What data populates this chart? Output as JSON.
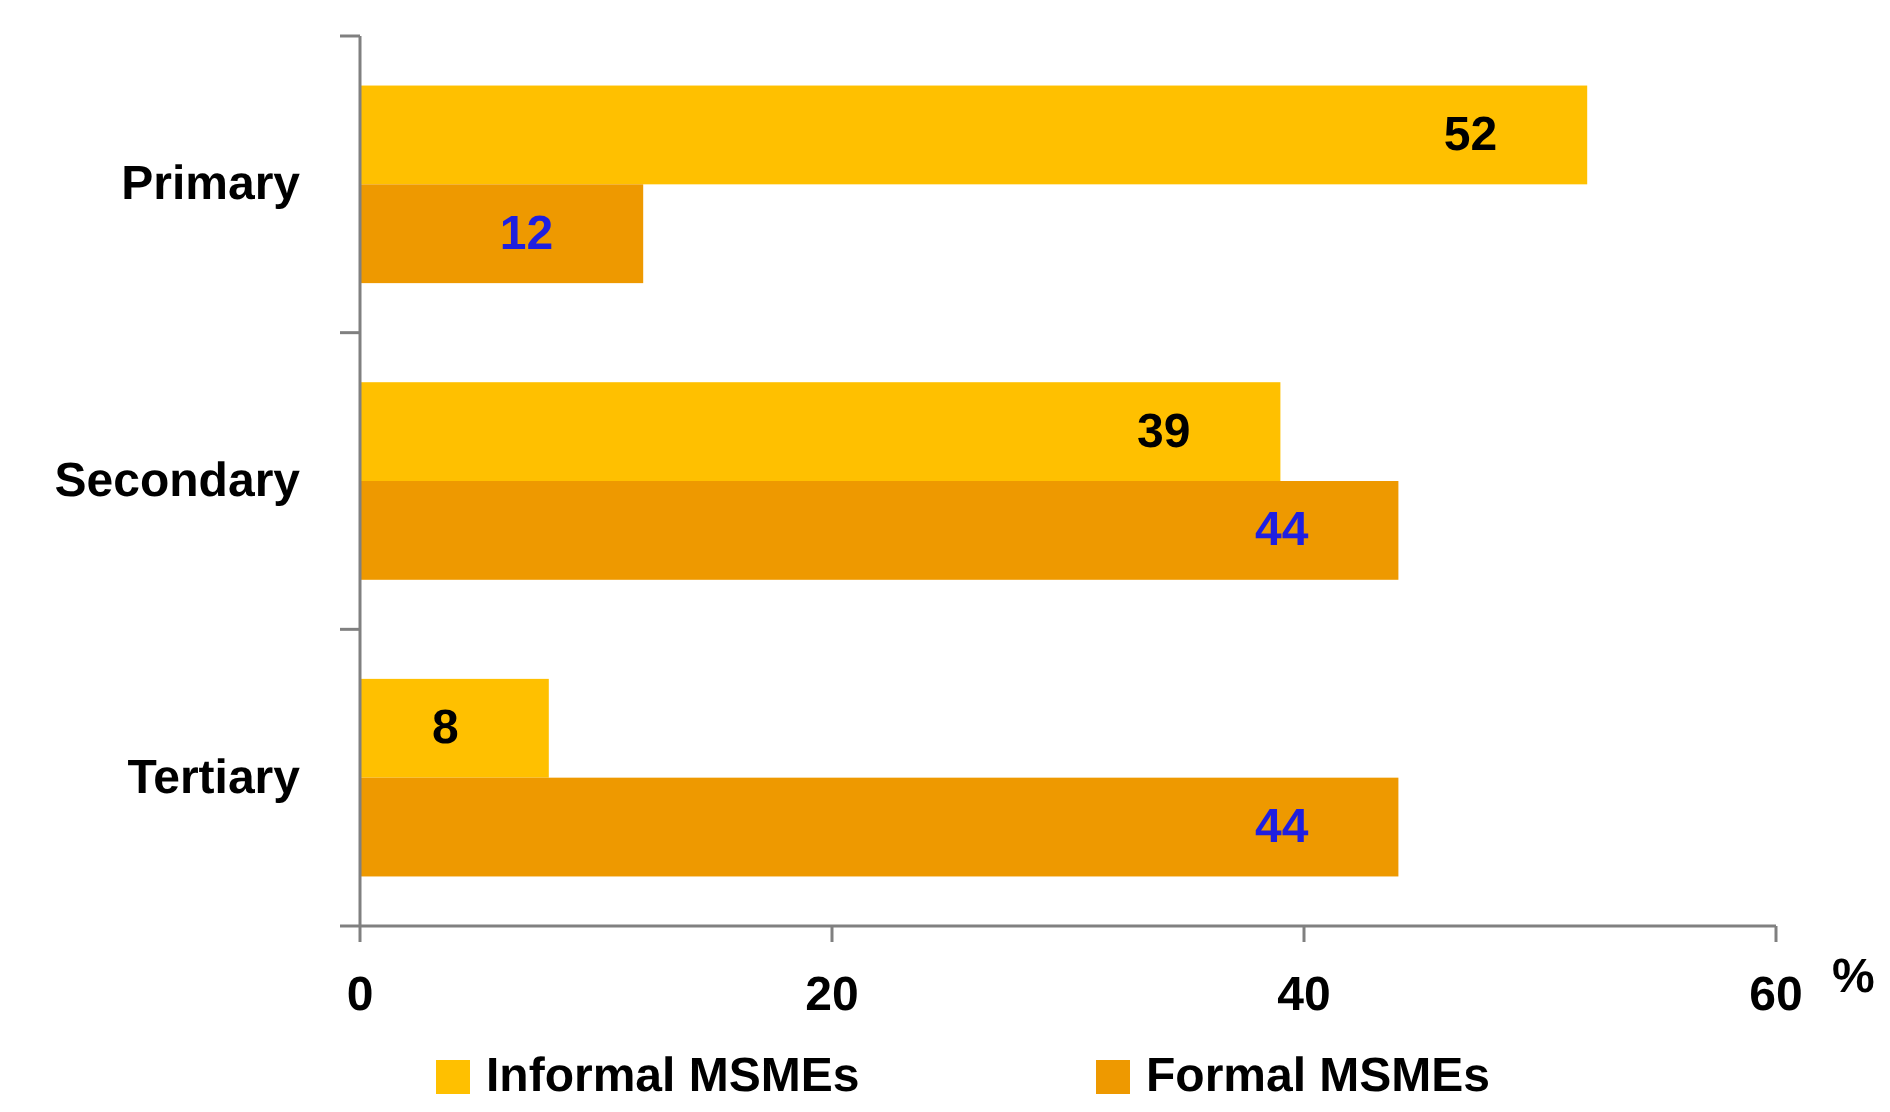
{
  "chart_data": {
    "type": "bar",
    "orientation": "horizontal",
    "categories": [
      "Primary",
      "Secondary",
      "Tertiary"
    ],
    "series": [
      {
        "name": "Informal MSMEs",
        "color": "#ffc000",
        "values": [
          52,
          39,
          8
        ]
      },
      {
        "name": "Formal MSMEs",
        "color": "#ee9900",
        "values": [
          12,
          44,
          44
        ]
      }
    ],
    "xlim": [
      0,
      60
    ],
    "xticks": [
      0,
      20,
      40,
      60
    ],
    "xlabel": "%",
    "data_labels": true,
    "legend": "bottom",
    "grid": false
  }
}
